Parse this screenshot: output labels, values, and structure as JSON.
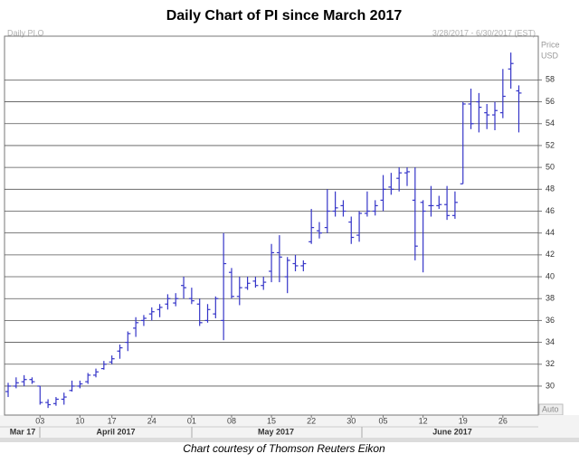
{
  "chart_data": {
    "type": "ohlc",
    "title": "Daily Chart of PI since March 2017",
    "header_left": "Daily PI.O",
    "header_right": "3/28/2017 - 6/30/2017 (EST)",
    "y_label_lines": [
      "Price",
      "USD"
    ],
    "auto_button": "Auto",
    "months": [
      "Mar 17",
      "April 2017",
      "May 2017",
      "June 2017"
    ],
    "caption": "Chart courtesy of Thomson Reuters Eikon",
    "color": "#3535c8",
    "ylim": [
      27.35,
      62
    ],
    "yticks": [
      30,
      32,
      34,
      36,
      38,
      40,
      42,
      44,
      46,
      48,
      50,
      52,
      54,
      56,
      58
    ],
    "grid": true,
    "categories": [
      null,
      null,
      null,
      null,
      "03",
      null,
      null,
      null,
      null,
      "10",
      null,
      null,
      null,
      "17",
      null,
      null,
      null,
      null,
      "24",
      null,
      null,
      null,
      null,
      "01",
      null,
      null,
      null,
      null,
      "08",
      null,
      null,
      null,
      null,
      "15",
      null,
      null,
      null,
      null,
      "22",
      null,
      null,
      null,
      null,
      "30",
      null,
      null,
      null,
      "05",
      null,
      null,
      null,
      null,
      "12",
      null,
      null,
      null,
      null,
      "19",
      null,
      null,
      null,
      null,
      "26",
      null,
      null
    ],
    "open": [
      29.5,
      30,
      30.4,
      30.6,
      30,
      28.5,
      28.4,
      28.8,
      29.6,
      30,
      30.4,
      31,
      31.6,
      32.2,
      33.2,
      34,
      35.3,
      36,
      36.6,
      37,
      37.5,
      37.6,
      39.2,
      38,
      37.5,
      36,
      36.6,
      36,
      40.4,
      38.2,
      39,
      39.6,
      39.2,
      40.5,
      42.2,
      40,
      41.2,
      41,
      43.2,
      44.2,
      44.5,
      46,
      46.5,
      45,
      43.8,
      45.8,
      46,
      47,
      48.2,
      49,
      49.5,
      47,
      46.8,
      46.5,
      46.5,
      46.6,
      45.6,
      48.5,
      55.8,
      56,
      55,
      54.8,
      55,
      59,
      57
    ],
    "high": [
      30.3,
      30.8,
      31,
      30.8,
      30,
      28.8,
      29,
      29.4,
      30.5,
      30.5,
      31.2,
      31.6,
      32.3,
      32.8,
      33.8,
      35,
      36.3,
      36.5,
      37.2,
      37.5,
      38.4,
      38.5,
      40,
      39,
      38,
      37.5,
      38.2,
      44,
      40.8,
      40,
      40,
      40,
      40,
      43,
      43.8,
      41.8,
      42,
      41.5,
      46.2,
      45,
      48,
      47.8,
      47,
      45.5,
      46,
      47.8,
      47,
      49.3,
      49.5,
      50,
      50,
      50,
      47,
      48.3,
      47.4,
      48.3,
      47.8,
      56,
      57.2,
      56.8,
      55.8,
      56,
      59,
      60.5,
      57.5
    ],
    "low": [
      29,
      29.8,
      30,
      30.2,
      28.3,
      28,
      28.2,
      28.3,
      29.5,
      29.8,
      30.2,
      30.8,
      31.5,
      32,
      32.5,
      33.2,
      34.5,
      35.5,
      36,
      36.3,
      37,
      37.3,
      38,
      37.5,
      35.5,
      35.8,
      36.2,
      34.2,
      38,
      37.4,
      38.8,
      39,
      38.8,
      39.5,
      39.5,
      38.5,
      40.5,
      40.5,
      43,
      43.5,
      44,
      45.5,
      45.5,
      43,
      43.2,
      45.5,
      45.6,
      46,
      47.5,
      47.8,
      48.3,
      41.5,
      40.4,
      45.5,
      46.2,
      45.2,
      45.3,
      48.5,
      53.5,
      53.2,
      53.5,
      53.4,
      54.5,
      57.2,
      53.2
    ],
    "close": [
      30,
      30.3,
      30.6,
      30.4,
      28.5,
      28.3,
      28.8,
      29,
      30,
      30.2,
      31,
      31.3,
      32,
      32.5,
      33.5,
      34.8,
      35.8,
      36.2,
      36.8,
      37.2,
      38,
      38,
      39,
      37.8,
      35.8,
      37,
      38,
      41.2,
      38.2,
      39,
      39.4,
      39.2,
      39.5,
      42.2,
      41.8,
      41.5,
      41,
      41.2,
      44.5,
      44,
      46,
      46.3,
      46,
      43.6,
      45.8,
      46,
      46.5,
      48,
      48,
      49.5,
      49.6,
      42.8,
      46,
      46.5,
      46.6,
      45.6,
      46.8,
      55.8,
      54,
      55.5,
      54.8,
      55.2,
      56.5,
      59.5,
      56.8
    ]
  }
}
